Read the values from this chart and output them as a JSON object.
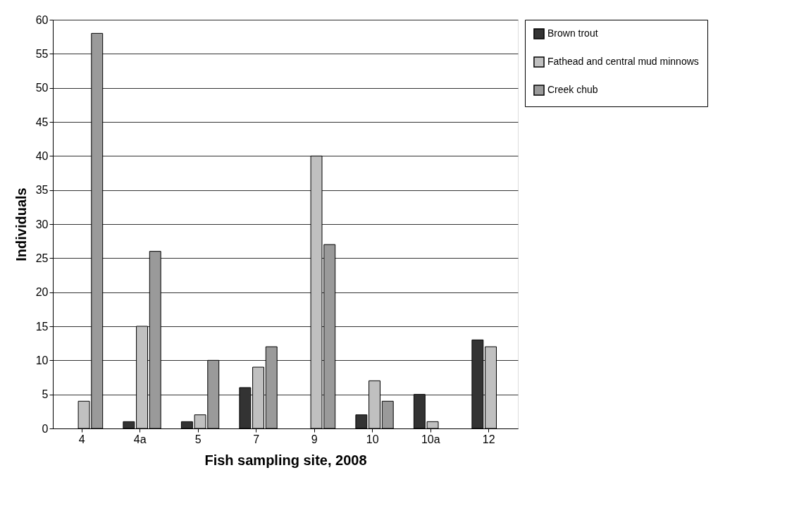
{
  "chart_data": {
    "type": "bar",
    "xlabel": "Fish sampling site, 2008",
    "ylabel": "Individuals",
    "categories": [
      "4",
      "4a",
      "5",
      "7",
      "9",
      "10",
      "10a",
      "12"
    ],
    "series": [
      {
        "name": "Brown trout",
        "color": "#333333",
        "values": [
          null,
          1,
          1,
          6,
          null,
          2,
          5,
          13
        ]
      },
      {
        "name": "Fathead and central mud minnows",
        "color": "#c0c0c0",
        "values": [
          4,
          15,
          2,
          9,
          40,
          7,
          1,
          12
        ]
      },
      {
        "name": "Creek chub",
        "color": "#9a9a9a",
        "values": [
          58,
          26,
          10,
          12,
          27,
          4,
          null,
          null
        ]
      }
    ],
    "ylim": [
      0,
      60
    ],
    "yticks": [
      0,
      5,
      10,
      15,
      20,
      25,
      30,
      35,
      40,
      45,
      50,
      55,
      60
    ],
    "grid": "y",
    "legend": "right"
  }
}
